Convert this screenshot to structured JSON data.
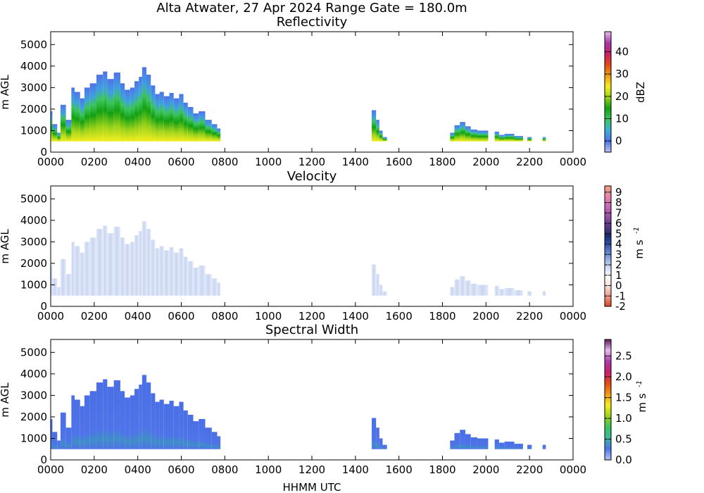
{
  "figure": {
    "suptitle": "Alta Atwater, 27 Apr 2024 Range Gate = 180.0m",
    "xlabel": "HHMM UTC"
  },
  "chart_data": [
    {
      "type": "heatmap",
      "title": "Reflectivity",
      "ylabel": "m AGL",
      "x_ticks": [
        "0000",
        "0200",
        "0400",
        "0600",
        "0800",
        "1000",
        "1200",
        "1400",
        "1600",
        "1800",
        "2000",
        "2200",
        "0000"
      ],
      "y_ticks": [
        "0",
        "1000",
        "2000",
        "3000",
        "4000",
        "5000"
      ],
      "xlim_hours": [
        0,
        24
      ],
      "ylim": [
        0,
        5600
      ],
      "colorbar": {
        "label": "dBZ",
        "ticks": [
          "0",
          "10",
          "20",
          "30",
          "40"
        ],
        "range": [
          -5,
          49
        ],
        "colors": [
          "#b9c4f5",
          "#4f73e8",
          "#3fb0d8",
          "#3cc45c",
          "#12a012",
          "#9ad21a",
          "#f5ee1e",
          "#f29a16",
          "#e24a12",
          "#c81e6e",
          "#a83aa8",
          "#e8bdf0"
        ]
      }
    },
    {
      "type": "heatmap",
      "title": "Velocity",
      "ylabel": "m s^-1",
      "ylabel_left": "m AGL",
      "x_ticks": [
        "0000",
        "0200",
        "0400",
        "0600",
        "0800",
        "1000",
        "1200",
        "1400",
        "1600",
        "1800",
        "2000",
        "2200",
        "0000"
      ],
      "y_ticks": [
        "0",
        "1000",
        "2000",
        "3000",
        "4000",
        "5000"
      ],
      "xlim_hours": [
        0,
        24
      ],
      "ylim": [
        0,
        5600
      ],
      "colorbar": {
        "label": "m s",
        "ticks": [
          "-2",
          "-1",
          "0",
          "1",
          "2",
          "3",
          "4",
          "5",
          "6",
          "7",
          "8",
          "9"
        ],
        "range": [
          -2,
          9.6
        ],
        "colors": [
          "#d8452a",
          "#f09a8a",
          "#f7ded8",
          "#ffffff",
          "#c9d6f2",
          "#7f9ddc",
          "#3a5bb3",
          "#1a2d6e",
          "#5a3a8a",
          "#9b4fa8",
          "#c86ab8",
          "#e886a8",
          "#f4a080"
        ]
      }
    },
    {
      "type": "heatmap",
      "title": "Spectral Width",
      "ylabel_left": "m AGL",
      "x_ticks": [
        "0000",
        "0200",
        "0400",
        "0600",
        "0800",
        "1000",
        "1200",
        "1400",
        "1600",
        "1800",
        "2000",
        "2200",
        "0000"
      ],
      "y_ticks": [
        "0",
        "1000",
        "2000",
        "3000",
        "4000",
        "5000"
      ],
      "xlim_hours": [
        0,
        24
      ],
      "ylim": [
        0,
        5600
      ],
      "colorbar": {
        "label": "m s",
        "ticks": [
          "0.0",
          "0.5",
          "1.0",
          "1.5",
          "2.0",
          "2.5"
        ],
        "range": [
          0,
          2.9
        ],
        "colors": [
          "#b9c4f5",
          "#4f73e8",
          "#3cb8a0",
          "#3cc45c",
          "#9ad21a",
          "#f5ee1e",
          "#f29a16",
          "#e24a12",
          "#c81e6e",
          "#a83aa8",
          "#e8bdf0",
          "#5a1a5a"
        ]
      }
    }
  ]
}
